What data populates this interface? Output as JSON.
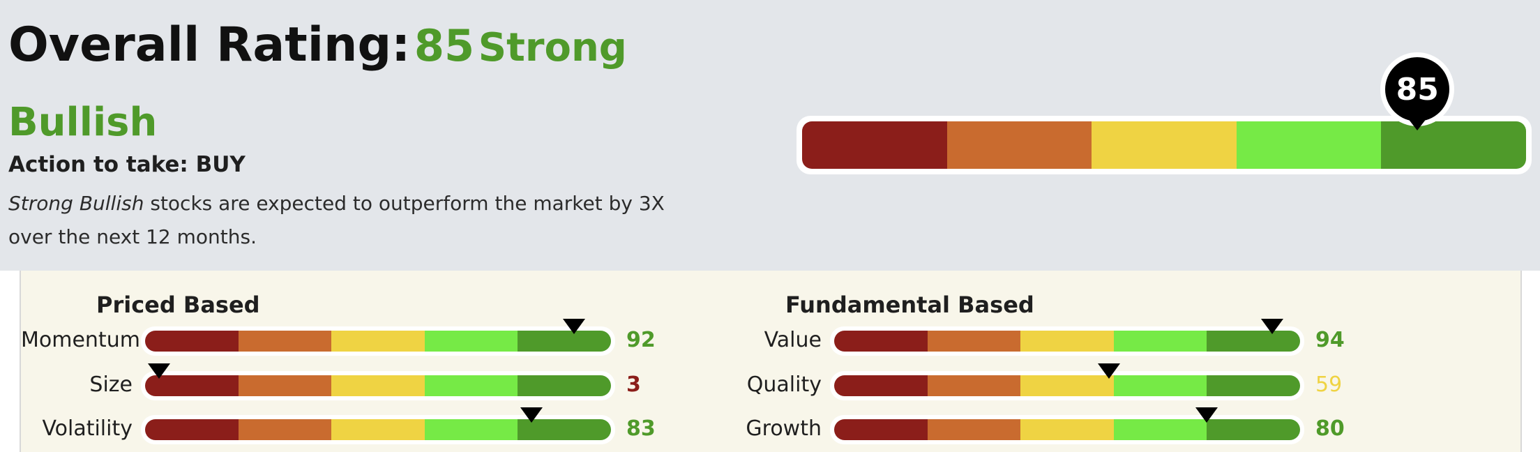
{
  "header": {
    "label": "Overall Rating:",
    "score": "85",
    "verdict": "Strong Bullish"
  },
  "action": "Action to take: BUY",
  "description": {
    "emphasis": "Strong Bullish",
    "rest": " stocks are expected to outperform the market by 3X over the next 12 months."
  },
  "overall_gauge": {
    "value": 85,
    "max": 100,
    "label": "85"
  },
  "scale_colors": [
    "#8b1e1a",
    "#c96b2f",
    "#efd343",
    "#76ea46",
    "#4f9a2a"
  ],
  "price_based": {
    "title": "Priced Based",
    "factors": [
      {
        "label": "Momentum",
        "value": 92,
        "score_text": "92",
        "score_color": "#4f9a2a"
      },
      {
        "label": "Size",
        "value": 3,
        "score_text": "3",
        "score_color": "#8b1e1a"
      },
      {
        "label": "Volatility",
        "value": 83,
        "score_text": "83",
        "score_color": "#4f9a2a"
      }
    ]
  },
  "fundamental_based": {
    "title": "Fundamental Based",
    "factors": [
      {
        "label": "Value",
        "value": 94,
        "score_text": "94",
        "score_color": "#4f9a2a"
      },
      {
        "label": "Quality",
        "value": 59,
        "score_text": "59",
        "score_color": "#efd343"
      },
      {
        "label": "Growth",
        "value": 80,
        "score_text": "80",
        "score_color": "#4f9a2a"
      }
    ]
  }
}
